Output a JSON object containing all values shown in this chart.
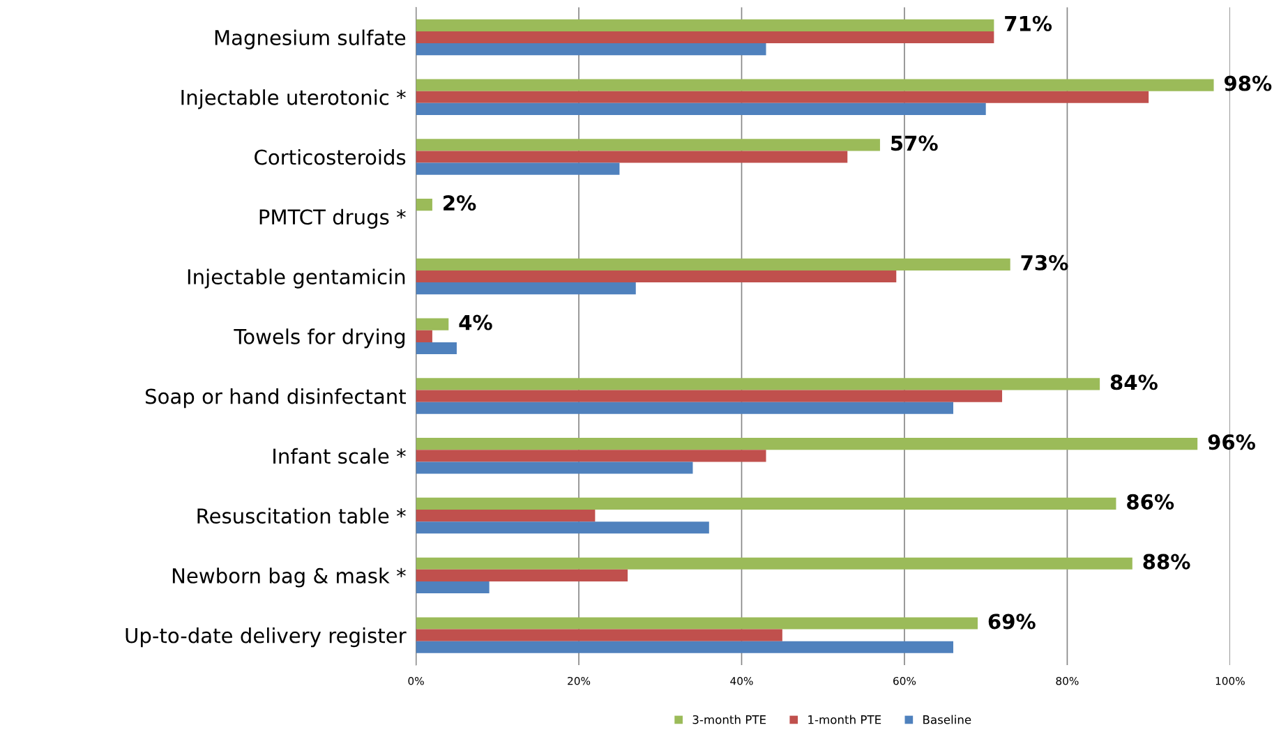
{
  "chart_data": {
    "type": "bar",
    "orientation": "horizontal",
    "categories": [
      "Magnesium sulfate",
      "Injectable uterotonic *",
      "Corticosteroids",
      "PMTCT drugs *",
      "Injectable gentamicin",
      "Towels for drying",
      "Soap or hand disinfectant",
      "Infant scale *",
      "Resuscitation table *",
      "Newborn bag & mask *",
      "Up-to-date delivery register"
    ],
    "series": [
      {
        "name": "3-month PTE",
        "color": "#9bbb59",
        "values": [
          71,
          98,
          57,
          2,
          73,
          4,
          84,
          96,
          86,
          88,
          69
        ],
        "value_labels": [
          "71%",
          "98%",
          "57%",
          "2%",
          "73%",
          "4%",
          "84%",
          "96%",
          "86%",
          "88%",
          "69%"
        ]
      },
      {
        "name": "1-month PTE",
        "color": "#c0504d",
        "values": [
          71,
          90,
          53,
          0,
          59,
          2,
          72,
          43,
          22,
          26,
          45
        ]
      },
      {
        "name": "Baseline",
        "color": "#4f81bd",
        "values": [
          43,
          70,
          25,
          0,
          27,
          5,
          66,
          34,
          36,
          9,
          66
        ]
      }
    ],
    "xlim": [
      0,
      100
    ],
    "xticks": [
      {
        "value": 0,
        "label": "0%"
      },
      {
        "value": 20,
        "label": "20%"
      },
      {
        "value": 40,
        "label": "40%"
      },
      {
        "value": 60,
        "label": "60%"
      },
      {
        "value": 80,
        "label": "80%"
      },
      {
        "value": 100,
        "label": "100%"
      }
    ],
    "grid": "x",
    "legend": "bottom"
  }
}
